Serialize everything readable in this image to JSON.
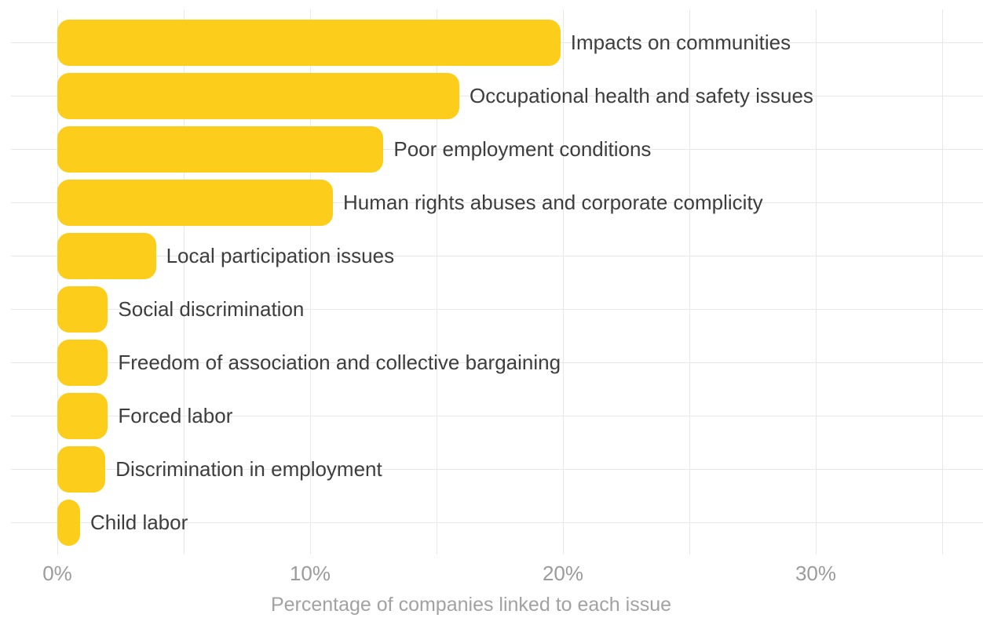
{
  "chart_data": {
    "type": "bar",
    "orientation": "horizontal",
    "title": "",
    "xlabel": "Percentage of companies linked to each issue",
    "ylabel": "",
    "categories": [
      "Impacts on communities",
      "Occupational health and safety issues",
      "Poor employment conditions",
      "Human rights abuses and corporate complicity",
      "Local participation issues",
      "Social discrimination",
      "Freedom of association and collective bargaining",
      "Forced labor",
      "Discrimination in employment",
      "Child labor"
    ],
    "values": [
      19.9,
      15.9,
      12.9,
      10.9,
      3.9,
      2.0,
      2.0,
      2.0,
      1.9,
      0.9
    ],
    "value_unit": "%",
    "xlim": [
      0,
      35
    ],
    "x_ticks": [
      0,
      10,
      20,
      30
    ],
    "x_tick_labels": [
      "0%",
      "10%",
      "20%",
      "30%"
    ],
    "minor_grid_step": 5,
    "grid": true,
    "legend": false,
    "colors": {
      "bar": "#FDCD1B",
      "label": "#3D3D3D",
      "tick": "#9B9B9B",
      "axis_title": "#A2A2A2",
      "grid": "#E8E8E8",
      "background": "#FFFFFF"
    }
  }
}
